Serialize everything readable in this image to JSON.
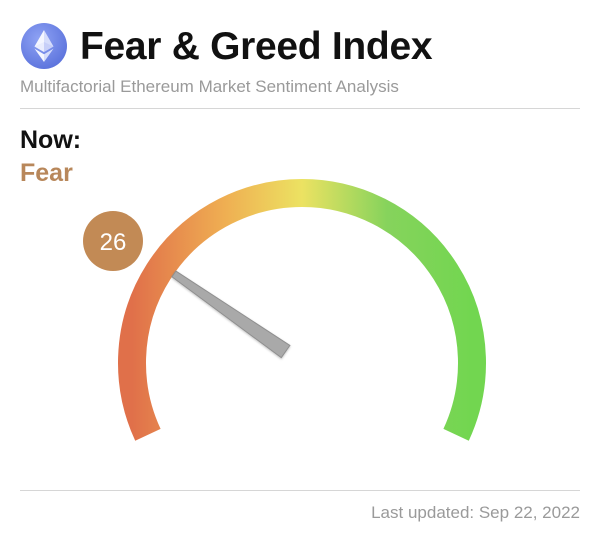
{
  "header": {
    "logo_icon": "ethereum-logo-icon",
    "title": "Fear & Greed Index",
    "subtitle": "Multifactorial Ethereum Market Sentiment Analysis"
  },
  "status": {
    "now_label": "Now:",
    "state": "Fear",
    "state_color": "#b8875a"
  },
  "gauge": {
    "value": 26,
    "min": 0,
    "max": 100,
    "badge_color": "#c28a55",
    "needle_color": "#a9a9a9",
    "gradient_colors": [
      "#e0704a",
      "#efae52",
      "#ece262",
      "#86d35c",
      "#72d650"
    ]
  },
  "footer": {
    "updated": "Last updated: Sep 22, 2022"
  }
}
